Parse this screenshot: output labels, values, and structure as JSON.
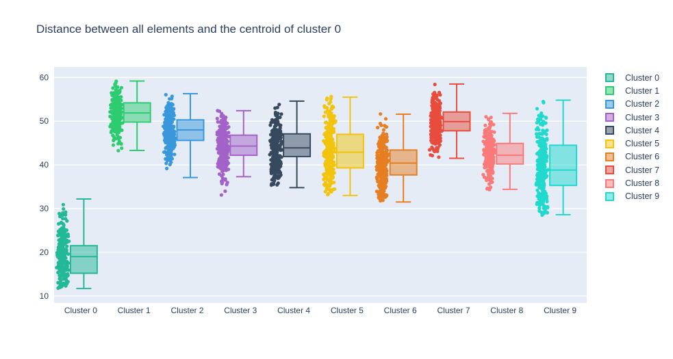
{
  "chart_data": {
    "type": "box",
    "boxpoints": "all",
    "title": "Distance between all elements and the centroid of cluster 0",
    "categories": [
      "Cluster 0",
      "Cluster 1",
      "Cluster 2",
      "Cluster 3",
      "Cluster 4",
      "Cluster 5",
      "Cluster 6",
      "Cluster 7",
      "Cluster 8",
      "Cluster 9"
    ],
    "yaxis": {
      "ticks": [
        10,
        20,
        30,
        40,
        50,
        60
      ],
      "range": [
        8.4,
        62.4
      ]
    },
    "legend_position": "right",
    "grid": true,
    "colors": {
      "plot_bg": "#e5ecf6",
      "grid": "#ffffff",
      "text": "#2a3f5f",
      "paper": "#ffffff"
    },
    "series": [
      {
        "name": "Cluster 0",
        "color": "#23b898",
        "whisker_low": 11.7,
        "q1": 15.2,
        "median": 19.0,
        "q3": 21.5,
        "whisker_high": 32.2,
        "points_min": 11.7,
        "points_max": 35.3,
        "n_points": 280
      },
      {
        "name": "Cluster 1",
        "color": "#2ecc71",
        "whisker_low": 43.3,
        "q1": 49.8,
        "median": 51.9,
        "q3": 54.2,
        "whisker_high": 59.2,
        "points_min": 43.2,
        "points_max": 59.5,
        "n_points": 260
      },
      {
        "name": "Cluster 2",
        "color": "#3898db",
        "whisker_low": 37.1,
        "q1": 45.6,
        "median": 48.0,
        "q3": 50.3,
        "whisker_high": 56.3,
        "points_min": 34.9,
        "points_max": 56.4,
        "n_points": 280
      },
      {
        "name": "Cluster 3",
        "color": "#a362c8",
        "whisker_low": 37.3,
        "q1": 42.2,
        "median": 44.3,
        "q3": 46.8,
        "whisker_high": 52.4,
        "points_min": 31.9,
        "points_max": 57.0,
        "n_points": 300
      },
      {
        "name": "Cluster 4",
        "color": "#37495e",
        "whisker_low": 34.8,
        "q1": 41.9,
        "median": 43.9,
        "q3": 47.1,
        "whisker_high": 54.6,
        "points_min": 34.6,
        "points_max": 56.6,
        "n_points": 300
      },
      {
        "name": "Cluster 5",
        "color": "#f2c40f",
        "whisker_low": 33.0,
        "q1": 39.3,
        "median": 42.9,
        "q3": 47.0,
        "whisker_high": 55.5,
        "points_min": 33.0,
        "points_max": 55.8,
        "n_points": 300
      },
      {
        "name": "Cluster 6",
        "color": "#e67e22",
        "whisker_low": 31.5,
        "q1": 37.7,
        "median": 40.4,
        "q3": 43.4,
        "whisker_high": 51.6,
        "points_min": 31.4,
        "points_max": 56.0,
        "n_points": 300
      },
      {
        "name": "Cluster 7",
        "color": "#e74c3c",
        "whisker_low": 41.5,
        "q1": 47.8,
        "median": 49.9,
        "q3": 52.1,
        "whisker_high": 58.5,
        "points_min": 41.3,
        "points_max": 59.0,
        "n_points": 280
      },
      {
        "name": "Cluster 8",
        "color": "#fa7a7a",
        "whisker_low": 34.4,
        "q1": 40.2,
        "median": 42.2,
        "q3": 44.9,
        "whisker_high": 51.8,
        "points_min": 34.3,
        "points_max": 52.2,
        "n_points": 280
      },
      {
        "name": "Cluster 9",
        "color": "#22d9ce",
        "whisker_low": 28.6,
        "q1": 35.3,
        "median": 38.8,
        "q3": 44.5,
        "whisker_high": 54.8,
        "points_min": 27.6,
        "points_max": 55.2,
        "n_points": 300
      }
    ]
  }
}
